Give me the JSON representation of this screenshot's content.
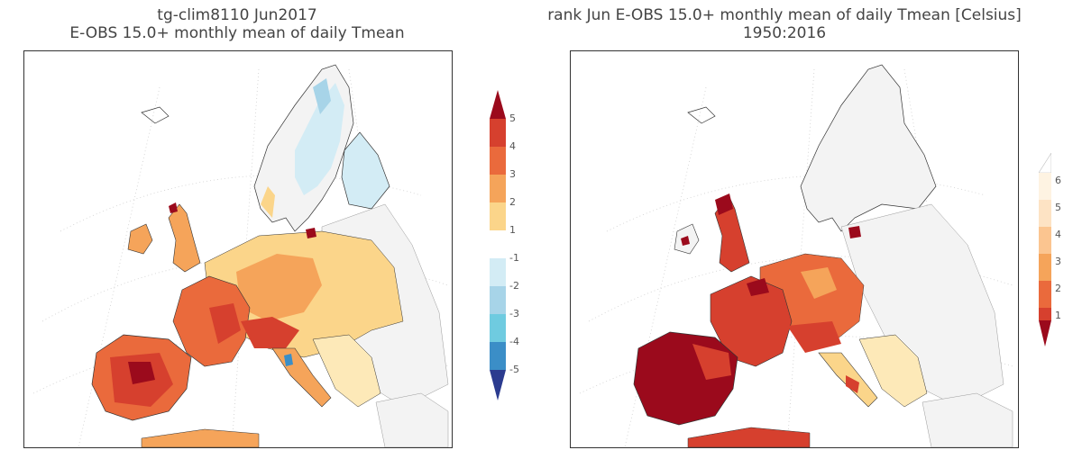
{
  "left_panel": {
    "title_line1": "tg-clim8110 Jun2017",
    "title_line2": "E-OBS 15.0+ monthly mean of daily Tmean",
    "colorbar_ticks": [
      "5",
      "4",
      "3",
      "2",
      "1",
      "-1",
      "-2",
      "-3",
      "-4",
      "-5"
    ]
  },
  "right_panel": {
    "title_line1": "rank Jun E-OBS 15.0+ monthly mean of daily Tmean [Celsius]",
    "title_line2": "1950:2016",
    "colorbar_ticks": [
      "6",
      "5",
      "4",
      "3",
      "2",
      "1"
    ]
  },
  "colors": {
    "deep_red": "#9b0a1c",
    "red": "#d6402e",
    "orange_red": "#ea6a3c",
    "orange": "#f5a45a",
    "light_orange": "#fbd58a",
    "pale": "#fde9b8",
    "white": "#ffffff",
    "light_blue": "#d3ecf5",
    "blue1": "#a7d4e8",
    "blue2": "#6fcbe0",
    "blue3": "#3b8ec7",
    "navy": "#2b3b8f",
    "land_gray": "#f3f3f3"
  }
}
